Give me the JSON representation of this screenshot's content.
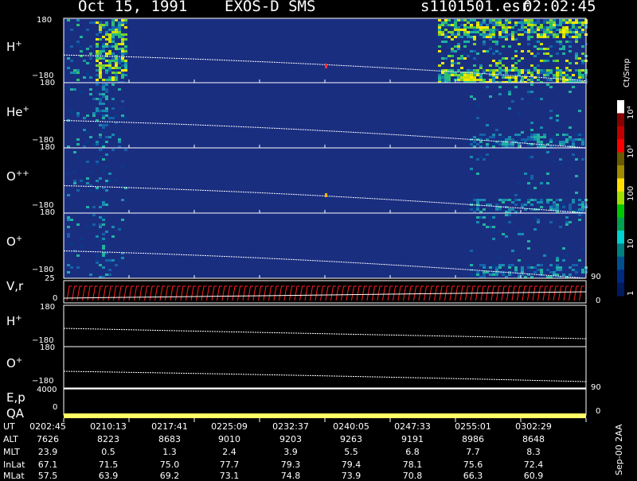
{
  "header": {
    "date": "Oct 15, 1991",
    "mission": "EXOS-D SMS",
    "file": "s1101501.esr",
    "time": "02:02:45"
  },
  "panels": [
    {
      "species": "H",
      "charge": "+",
      "ymax": "180",
      "ymin": "−180"
    },
    {
      "species": "He",
      "charge": "+",
      "ymax": "180",
      "ymin": "−180"
    },
    {
      "species": "O",
      "charge": "++",
      "ymax": "180",
      "ymin": "−180"
    },
    {
      "species": "O",
      "charge": "+",
      "ymax": "180",
      "ymin": "−180"
    }
  ],
  "vr_panel": {
    "label": "V,r",
    "ymax": "25",
    "ymin": "0",
    "right_max": "90",
    "right_min": "0"
  },
  "line_panels": [
    {
      "species": "H",
      "charge": "+",
      "ymax": "180",
      "ymin": "−180"
    },
    {
      "species": "O",
      "charge": "+",
      "ymax": "180",
      "ymin": "−180"
    }
  ],
  "ep_panel": {
    "label": "E,p",
    "ytop": "4000",
    "right": "90"
  },
  "qa_panel": {
    "label": "QA",
    "ybottom": "0",
    "right": "0"
  },
  "colorbar": {
    "unit": "Ct/Smp",
    "labels": [
      "10⁴",
      "10³",
      "100",
      "10",
      "1"
    ],
    "colors": [
      "#ffffff",
      "#8a0000",
      "#c00000",
      "#ff0000",
      "#6a5a00",
      "#a08a00",
      "#ffe000",
      "#a0e000",
      "#00c800",
      "#00a050",
      "#00d0d0",
      "#008080",
      "#005090",
      "#002a80",
      "#001a60"
    ]
  },
  "footer": {
    "rows": [
      {
        "key": "UT",
        "values": [
          "0202:45",
          "0210:13",
          "0217:41",
          "0225:09",
          "0232:37",
          "0240:05",
          "0247:33",
          "0255:01",
          "0302:29"
        ]
      },
      {
        "key": "ALT",
        "values": [
          "7626",
          "8223",
          "8683",
          "9010",
          "9203",
          "9263",
          "9191",
          "8986",
          "8648"
        ]
      },
      {
        "key": "MLT",
        "values": [
          "23.9",
          "0.5",
          "1.3",
          "2.4",
          "3.9",
          "5.5",
          "6.8",
          "7.7",
          "8.3"
        ]
      },
      {
        "key": "InLat",
        "values": [
          "67.1",
          "71.5",
          "75.0",
          "77.7",
          "79.3",
          "79.4",
          "78.1",
          "75.6",
          "72.4"
        ]
      },
      {
        "key": "MLat",
        "values": [
          "57.5",
          "63.9",
          "69.2",
          "73.1",
          "74.8",
          "73.9",
          "70.8",
          "66.3",
          "60.9"
        ]
      }
    ],
    "version": "Sep-00 2AA"
  },
  "chart_data": {
    "type": "heatmap",
    "title": "Oct 15, 1991   EXOS-D SMS",
    "xlabel": "UT",
    "x_ticks": [
      "0202:45",
      "0210:13",
      "0217:41",
      "0225:09",
      "0232:37",
      "0240:05",
      "0247:33",
      "0255:01",
      "0302:29"
    ],
    "series": [
      {
        "name": "H+",
        "ylim": [
          -180,
          180
        ]
      },
      {
        "name": "He+",
        "ylim": [
          -180,
          180
        ]
      },
      {
        "name": "O++",
        "ylim": [
          -180,
          180
        ]
      },
      {
        "name": "O+",
        "ylim": [
          -180,
          180
        ]
      }
    ],
    "color_scale": {
      "unit": "Ct/Smp",
      "min": 1,
      "max": 10000,
      "log": true
    }
  }
}
